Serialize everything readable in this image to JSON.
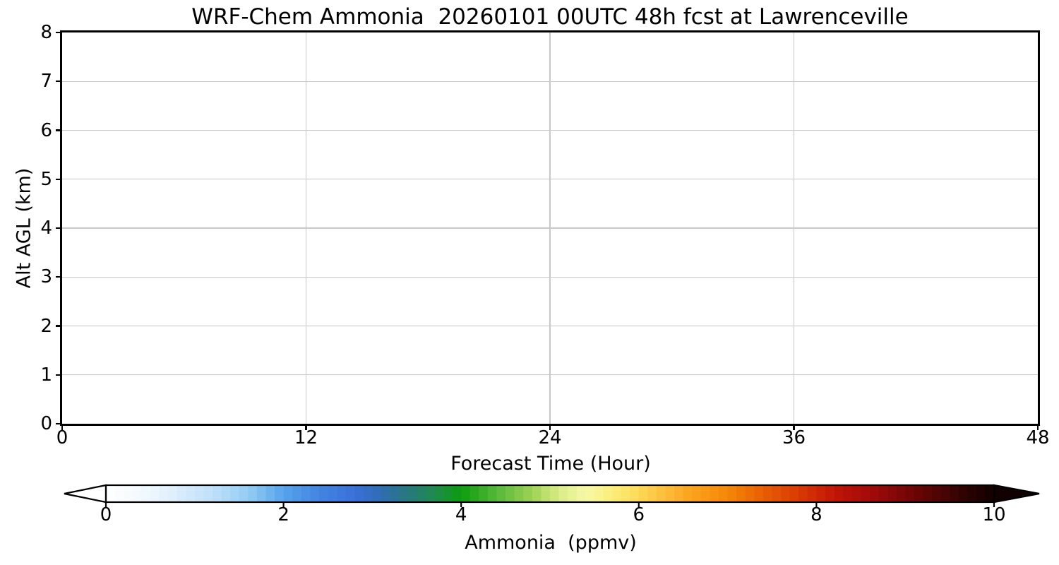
{
  "chart_data": {
    "type": "heatmap",
    "title": "WRF-Chem Ammonia  20260101 00UTC 48h fcst at Lawrenceville",
    "xlabel": "Forecast Time (Hour)",
    "ylabel": "Alt AGL (km)",
    "xlim": [
      0,
      48
    ],
    "ylim": [
      0,
      8
    ],
    "x_ticks": [
      0,
      12,
      24,
      36,
      48
    ],
    "y_ticks": [
      0,
      1,
      2,
      3,
      4,
      5,
      6,
      7,
      8
    ],
    "grid": true,
    "grid_color": "#c8c8c8",
    "field_values": "uniform 0 ppmv — time–height cross-section is blank/white (no ammonia signal rendered between 0–8 km AGL over forecast hours 0–48)",
    "colorbar": {
      "label": "Ammonia  (ppmv)",
      "min": 0,
      "max": 10,
      "ticks": [
        0,
        2,
        4,
        6,
        8,
        10
      ],
      "orientation": "horizontal",
      "extend": "both",
      "n_segments": 100,
      "stops": [
        [
          0.0,
          "#ffffff"
        ],
        [
          0.04,
          "#f2f9fe"
        ],
        [
          0.08,
          "#dcedfc"
        ],
        [
          0.12,
          "#bfe0fa"
        ],
        [
          0.16,
          "#94cdf3"
        ],
        [
          0.2,
          "#57a3ec"
        ],
        [
          0.24,
          "#4285e2"
        ],
        [
          0.28,
          "#3a70d8"
        ],
        [
          0.31,
          "#2f6cb2"
        ],
        [
          0.34,
          "#28787e"
        ],
        [
          0.37,
          "#1f8a4e"
        ],
        [
          0.4,
          "#0d9c0d"
        ],
        [
          0.44,
          "#55b83a"
        ],
        [
          0.48,
          "#9ed254"
        ],
        [
          0.51,
          "#d9ec86"
        ],
        [
          0.54,
          "#f7f8a8"
        ],
        [
          0.57,
          "#fbee7a"
        ],
        [
          0.6,
          "#fcd957"
        ],
        [
          0.63,
          "#fdbc3b"
        ],
        [
          0.66,
          "#fba21c"
        ],
        [
          0.7,
          "#f58708"
        ],
        [
          0.74,
          "#e85f05"
        ],
        [
          0.78,
          "#d93a04"
        ],
        [
          0.82,
          "#c21506"
        ],
        [
          0.86,
          "#a30b0a"
        ],
        [
          0.9,
          "#770606"
        ],
        [
          0.94,
          "#4c0404"
        ],
        [
          0.97,
          "#2a0202"
        ],
        [
          1.0,
          "#120101"
        ]
      ]
    }
  }
}
